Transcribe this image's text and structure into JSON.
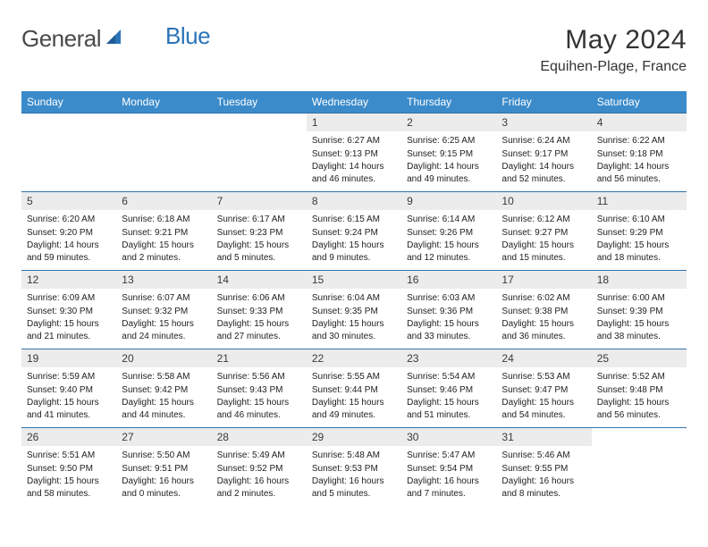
{
  "brand": {
    "part1": "General",
    "part2": "Blue"
  },
  "title": "May 2024",
  "location": "Equihen-Plage, France",
  "colors": {
    "header_bg": "#3b8bca",
    "header_text": "#ffffff",
    "row_border": "#2f72ab",
    "daynum_bg": "#ececec",
    "text": "#222222",
    "logo_dark": "#4a4a4a",
    "logo_blue": "#2b74b8"
  },
  "weekdays": [
    "Sunday",
    "Monday",
    "Tuesday",
    "Wednesday",
    "Thursday",
    "Friday",
    "Saturday"
  ],
  "weeks": [
    [
      null,
      null,
      null,
      {
        "n": "1",
        "sr": "6:27 AM",
        "ss": "9:13 PM",
        "dl": "14 hours and 46 minutes."
      },
      {
        "n": "2",
        "sr": "6:25 AM",
        "ss": "9:15 PM",
        "dl": "14 hours and 49 minutes."
      },
      {
        "n": "3",
        "sr": "6:24 AM",
        "ss": "9:17 PM",
        "dl": "14 hours and 52 minutes."
      },
      {
        "n": "4",
        "sr": "6:22 AM",
        "ss": "9:18 PM",
        "dl": "14 hours and 56 minutes."
      }
    ],
    [
      {
        "n": "5",
        "sr": "6:20 AM",
        "ss": "9:20 PM",
        "dl": "14 hours and 59 minutes."
      },
      {
        "n": "6",
        "sr": "6:18 AM",
        "ss": "9:21 PM",
        "dl": "15 hours and 2 minutes."
      },
      {
        "n": "7",
        "sr": "6:17 AM",
        "ss": "9:23 PM",
        "dl": "15 hours and 5 minutes."
      },
      {
        "n": "8",
        "sr": "6:15 AM",
        "ss": "9:24 PM",
        "dl": "15 hours and 9 minutes."
      },
      {
        "n": "9",
        "sr": "6:14 AM",
        "ss": "9:26 PM",
        "dl": "15 hours and 12 minutes."
      },
      {
        "n": "10",
        "sr": "6:12 AM",
        "ss": "9:27 PM",
        "dl": "15 hours and 15 minutes."
      },
      {
        "n": "11",
        "sr": "6:10 AM",
        "ss": "9:29 PM",
        "dl": "15 hours and 18 minutes."
      }
    ],
    [
      {
        "n": "12",
        "sr": "6:09 AM",
        "ss": "9:30 PM",
        "dl": "15 hours and 21 minutes."
      },
      {
        "n": "13",
        "sr": "6:07 AM",
        "ss": "9:32 PM",
        "dl": "15 hours and 24 minutes."
      },
      {
        "n": "14",
        "sr": "6:06 AM",
        "ss": "9:33 PM",
        "dl": "15 hours and 27 minutes."
      },
      {
        "n": "15",
        "sr": "6:04 AM",
        "ss": "9:35 PM",
        "dl": "15 hours and 30 minutes."
      },
      {
        "n": "16",
        "sr": "6:03 AM",
        "ss": "9:36 PM",
        "dl": "15 hours and 33 minutes."
      },
      {
        "n": "17",
        "sr": "6:02 AM",
        "ss": "9:38 PM",
        "dl": "15 hours and 36 minutes."
      },
      {
        "n": "18",
        "sr": "6:00 AM",
        "ss": "9:39 PM",
        "dl": "15 hours and 38 minutes."
      }
    ],
    [
      {
        "n": "19",
        "sr": "5:59 AM",
        "ss": "9:40 PM",
        "dl": "15 hours and 41 minutes."
      },
      {
        "n": "20",
        "sr": "5:58 AM",
        "ss": "9:42 PM",
        "dl": "15 hours and 44 minutes."
      },
      {
        "n": "21",
        "sr": "5:56 AM",
        "ss": "9:43 PM",
        "dl": "15 hours and 46 minutes."
      },
      {
        "n": "22",
        "sr": "5:55 AM",
        "ss": "9:44 PM",
        "dl": "15 hours and 49 minutes."
      },
      {
        "n": "23",
        "sr": "5:54 AM",
        "ss": "9:46 PM",
        "dl": "15 hours and 51 minutes."
      },
      {
        "n": "24",
        "sr": "5:53 AM",
        "ss": "9:47 PM",
        "dl": "15 hours and 54 minutes."
      },
      {
        "n": "25",
        "sr": "5:52 AM",
        "ss": "9:48 PM",
        "dl": "15 hours and 56 minutes."
      }
    ],
    [
      {
        "n": "26",
        "sr": "5:51 AM",
        "ss": "9:50 PM",
        "dl": "15 hours and 58 minutes."
      },
      {
        "n": "27",
        "sr": "5:50 AM",
        "ss": "9:51 PM",
        "dl": "16 hours and 0 minutes."
      },
      {
        "n": "28",
        "sr": "5:49 AM",
        "ss": "9:52 PM",
        "dl": "16 hours and 2 minutes."
      },
      {
        "n": "29",
        "sr": "5:48 AM",
        "ss": "9:53 PM",
        "dl": "16 hours and 5 minutes."
      },
      {
        "n": "30",
        "sr": "5:47 AM",
        "ss": "9:54 PM",
        "dl": "16 hours and 7 minutes."
      },
      {
        "n": "31",
        "sr": "5:46 AM",
        "ss": "9:55 PM",
        "dl": "16 hours and 8 minutes."
      },
      null
    ]
  ],
  "labels": {
    "sunrise": "Sunrise:",
    "sunset": "Sunset:",
    "daylight": "Daylight:"
  }
}
